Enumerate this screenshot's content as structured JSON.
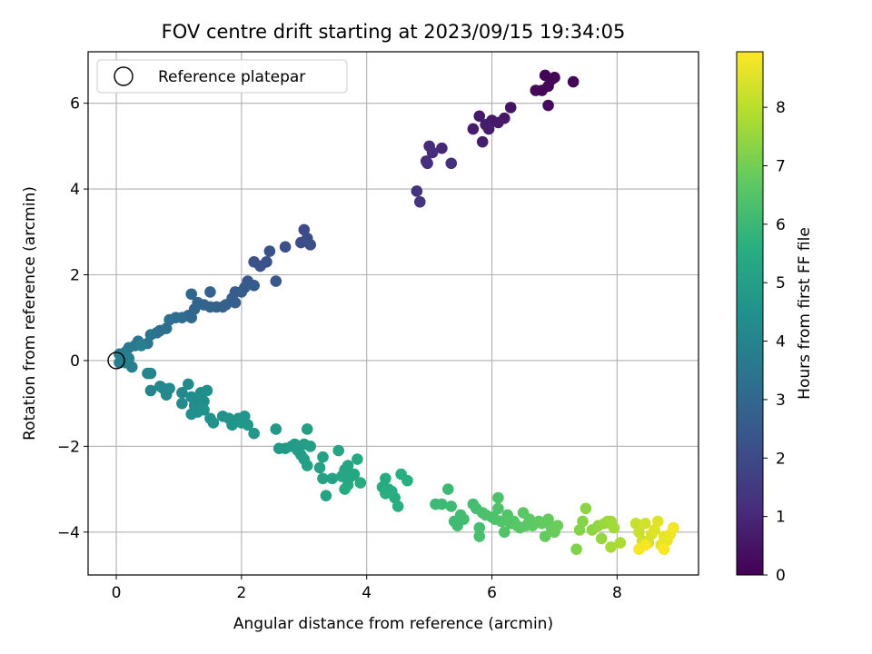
{
  "chart_data": {
    "type": "scatter",
    "title": "FOV centre drift starting at 2023/09/15 19:34:05",
    "xlabel": "Angular distance from reference (arcmin)",
    "ylabel": "Rotation from reference (arcmin)",
    "xlim": [
      -0.45,
      9.3
    ],
    "ylim": [
      -5.0,
      7.2
    ],
    "xticks": [
      0,
      2,
      4,
      6,
      8
    ],
    "yticks": [
      -4,
      -2,
      0,
      2,
      4,
      6
    ],
    "xtick_labels": [
      "0",
      "2",
      "4",
      "6",
      "8"
    ],
    "ytick_labels": [
      "−4",
      "−2",
      "0",
      "2",
      "4",
      "6"
    ],
    "grid": true,
    "legend": {
      "placement": "top-left",
      "entries": [
        {
          "label": "Reference platepar",
          "marker": "open-circle"
        }
      ]
    },
    "reference_point": {
      "x": 0,
      "y": 0
    },
    "colorbar": {
      "label": "Hours from first FF file",
      "range": [
        0,
        8.95
      ],
      "ticks": [
        0,
        1,
        2,
        3,
        4,
        5,
        6,
        7,
        8
      ],
      "tick_labels": [
        "0",
        "1",
        "2",
        "3",
        "4",
        "5",
        "6",
        "7",
        "8"
      ],
      "colormap": "viridis"
    },
    "points": [
      {
        "x": 6.85,
        "y": 6.65,
        "c": 0.05
      },
      {
        "x": 6.95,
        "y": 6.55,
        "c": 0.08
      },
      {
        "x": 7.0,
        "y": 6.6,
        "c": 0.1
      },
      {
        "x": 7.3,
        "y": 6.5,
        "c": 0.12
      },
      {
        "x": 6.8,
        "y": 6.3,
        "c": 0.15
      },
      {
        "x": 6.9,
        "y": 6.4,
        "c": 0.18
      },
      {
        "x": 6.7,
        "y": 6.3,
        "c": 0.2
      },
      {
        "x": 6.9,
        "y": 5.95,
        "c": 0.25
      },
      {
        "x": 6.3,
        "y": 5.9,
        "c": 0.5
      },
      {
        "x": 6.2,
        "y": 5.65,
        "c": 0.55
      },
      {
        "x": 6.0,
        "y": 5.6,
        "c": 0.6
      },
      {
        "x": 6.1,
        "y": 5.55,
        "c": 0.62
      },
      {
        "x": 5.8,
        "y": 5.7,
        "c": 0.65
      },
      {
        "x": 5.9,
        "y": 5.5,
        "c": 0.68
      },
      {
        "x": 5.7,
        "y": 5.4,
        "c": 0.7
      },
      {
        "x": 5.95,
        "y": 5.4,
        "c": 0.72
      },
      {
        "x": 5.85,
        "y": 5.1,
        "c": 0.75
      },
      {
        "x": 5.2,
        "y": 4.95,
        "c": 1.0
      },
      {
        "x": 5.0,
        "y": 5.0,
        "c": 1.05
      },
      {
        "x": 5.05,
        "y": 4.85,
        "c": 1.1
      },
      {
        "x": 4.95,
        "y": 4.65,
        "c": 1.15
      },
      {
        "x": 4.97,
        "y": 4.6,
        "c": 1.18
      },
      {
        "x": 5.35,
        "y": 4.6,
        "c": 1.2
      },
      {
        "x": 4.8,
        "y": 3.95,
        "c": 1.3
      },
      {
        "x": 4.85,
        "y": 3.7,
        "c": 1.35
      },
      {
        "x": 3.0,
        "y": 3.05,
        "c": 2.0
      },
      {
        "x": 3.05,
        "y": 2.85,
        "c": 2.05
      },
      {
        "x": 3.1,
        "y": 2.7,
        "c": 2.1
      },
      {
        "x": 2.95,
        "y": 2.75,
        "c": 2.12
      },
      {
        "x": 2.7,
        "y": 2.65,
        "c": 2.15
      },
      {
        "x": 2.45,
        "y": 2.55,
        "c": 2.2
      },
      {
        "x": 2.2,
        "y": 2.3,
        "c": 2.25
      },
      {
        "x": 2.3,
        "y": 2.2,
        "c": 2.28
      },
      {
        "x": 2.4,
        "y": 2.3,
        "c": 2.3
      },
      {
        "x": 2.55,
        "y": 1.85,
        "c": 2.4
      },
      {
        "x": 2.1,
        "y": 1.85,
        "c": 2.45
      },
      {
        "x": 2.05,
        "y": 1.7,
        "c": 2.5
      },
      {
        "x": 2.2,
        "y": 1.75,
        "c": 2.55
      },
      {
        "x": 1.9,
        "y": 1.6,
        "c": 2.6
      },
      {
        "x": 2.0,
        "y": 1.6,
        "c": 2.62
      },
      {
        "x": 1.85,
        "y": 1.45,
        "c": 2.65
      },
      {
        "x": 1.9,
        "y": 1.35,
        "c": 2.7
      },
      {
        "x": 1.75,
        "y": 1.3,
        "c": 2.75
      },
      {
        "x": 1.7,
        "y": 1.25,
        "c": 2.78
      },
      {
        "x": 1.6,
        "y": 1.25,
        "c": 2.8
      },
      {
        "x": 1.5,
        "y": 1.6,
        "c": 2.82
      },
      {
        "x": 1.5,
        "y": 1.25,
        "c": 2.85
      },
      {
        "x": 1.4,
        "y": 1.3,
        "c": 2.88
      },
      {
        "x": 1.3,
        "y": 1.35,
        "c": 2.9
      },
      {
        "x": 1.2,
        "y": 1.55,
        "c": 2.92
      },
      {
        "x": 1.25,
        "y": 1.2,
        "c": 2.95
      },
      {
        "x": 1.15,
        "y": 1.05,
        "c": 3.0
      },
      {
        "x": 1.2,
        "y": 1.0,
        "c": 3.05
      },
      {
        "x": 1.05,
        "y": 1.0,
        "c": 3.1
      },
      {
        "x": 0.95,
        "y": 1.0,
        "c": 3.15
      },
      {
        "x": 0.85,
        "y": 0.95,
        "c": 3.2
      },
      {
        "x": 0.8,
        "y": 0.75,
        "c": 3.25
      },
      {
        "x": 0.7,
        "y": 0.7,
        "c": 3.3
      },
      {
        "x": 0.65,
        "y": 0.65,
        "c": 3.35
      },
      {
        "x": 0.55,
        "y": 0.6,
        "c": 3.4
      },
      {
        "x": 0.5,
        "y": 0.4,
        "c": 3.45
      },
      {
        "x": 0.35,
        "y": 0.45,
        "c": 3.5
      },
      {
        "x": 0.3,
        "y": 0.35,
        "c": 3.55
      },
      {
        "x": 0.2,
        "y": 0.3,
        "c": 3.6
      },
      {
        "x": 0.15,
        "y": 0.2,
        "c": 3.65
      },
      {
        "x": 0.1,
        "y": 0.1,
        "c": 3.7
      },
      {
        "x": 0.05,
        "y": 0.15,
        "c": 3.72
      },
      {
        "x": 0.05,
        "y": -0.05,
        "c": 3.75
      },
      {
        "x": 0.15,
        "y": -0.05,
        "c": 3.8
      },
      {
        "x": 0.25,
        "y": -0.15,
        "c": 3.82
      },
      {
        "x": 0.2,
        "y": 0.05,
        "c": 3.85
      },
      {
        "x": 0.4,
        "y": 0.35,
        "c": 3.9
      },
      {
        "x": 0.5,
        "y": -0.3,
        "c": 4.0
      },
      {
        "x": 0.55,
        "y": -0.3,
        "c": 4.02
      },
      {
        "x": 0.55,
        "y": -0.7,
        "c": 4.05
      },
      {
        "x": 0.7,
        "y": -0.6,
        "c": 4.1
      },
      {
        "x": 0.75,
        "y": -0.65,
        "c": 4.12
      },
      {
        "x": 0.8,
        "y": -0.8,
        "c": 4.15
      },
      {
        "x": 0.85,
        "y": -0.65,
        "c": 4.18
      },
      {
        "x": 1.05,
        "y": -0.75,
        "c": 4.2
      },
      {
        "x": 1.15,
        "y": -0.55,
        "c": 4.22
      },
      {
        "x": 1.05,
        "y": -1.0,
        "c": 4.25
      },
      {
        "x": 1.2,
        "y": -0.85,
        "c": 4.28
      },
      {
        "x": 1.3,
        "y": -0.9,
        "c": 4.3
      },
      {
        "x": 1.25,
        "y": -1.05,
        "c": 4.32
      },
      {
        "x": 1.35,
        "y": -0.75,
        "c": 4.35
      },
      {
        "x": 1.4,
        "y": -0.95,
        "c": 4.38
      },
      {
        "x": 1.45,
        "y": -0.7,
        "c": 4.4
      },
      {
        "x": 1.3,
        "y": -1.2,
        "c": 4.42
      },
      {
        "x": 1.2,
        "y": -1.25,
        "c": 4.45
      },
      {
        "x": 1.4,
        "y": -1.15,
        "c": 4.48
      },
      {
        "x": 1.5,
        "y": -1.35,
        "c": 4.5
      },
      {
        "x": 1.55,
        "y": -1.45,
        "c": 4.52
      },
      {
        "x": 1.7,
        "y": -1.3,
        "c": 4.55
      },
      {
        "x": 1.8,
        "y": -1.35,
        "c": 4.58
      },
      {
        "x": 1.85,
        "y": -1.5,
        "c": 4.6
      },
      {
        "x": 1.95,
        "y": -1.35,
        "c": 4.62
      },
      {
        "x": 2.0,
        "y": -1.45,
        "c": 4.65
      },
      {
        "x": 2.05,
        "y": -1.3,
        "c": 4.68
      },
      {
        "x": 2.1,
        "y": -1.5,
        "c": 4.7
      },
      {
        "x": 2.2,
        "y": -1.7,
        "c": 4.72
      },
      {
        "x": 2.55,
        "y": -1.6,
        "c": 4.75
      },
      {
        "x": 2.6,
        "y": -2.05,
        "c": 4.8
      },
      {
        "x": 2.7,
        "y": -2.05,
        "c": 4.82
      },
      {
        "x": 2.8,
        "y": -2.0,
        "c": 4.85
      },
      {
        "x": 2.85,
        "y": -1.95,
        "c": 4.88
      },
      {
        "x": 2.9,
        "y": -2.1,
        "c": 4.9
      },
      {
        "x": 2.95,
        "y": -2.2,
        "c": 4.92
      },
      {
        "x": 3.0,
        "y": -1.95,
        "c": 4.95
      },
      {
        "x": 3.0,
        "y": -2.3,
        "c": 4.98
      },
      {
        "x": 3.05,
        "y": -1.6,
        "c": 5.0
      },
      {
        "x": 3.1,
        "y": -2.0,
        "c": 5.02
      },
      {
        "x": 3.05,
        "y": -2.45,
        "c": 5.05
      },
      {
        "x": 3.3,
        "y": -2.25,
        "c": 5.08
      },
      {
        "x": 3.25,
        "y": -2.5,
        "c": 5.1
      },
      {
        "x": 3.3,
        "y": -2.75,
        "c": 5.12
      },
      {
        "x": 3.45,
        "y": -2.75,
        "c": 5.15
      },
      {
        "x": 3.35,
        "y": -3.15,
        "c": 5.18
      },
      {
        "x": 3.55,
        "y": -2.1,
        "c": 5.2
      },
      {
        "x": 3.65,
        "y": -2.55,
        "c": 5.22
      },
      {
        "x": 3.7,
        "y": -2.45,
        "c": 5.25
      },
      {
        "x": 3.6,
        "y": -2.7,
        "c": 5.28
      },
      {
        "x": 3.75,
        "y": -2.7,
        "c": 5.3
      },
      {
        "x": 3.8,
        "y": -2.65,
        "c": 5.32
      },
      {
        "x": 3.85,
        "y": -2.3,
        "c": 5.35
      },
      {
        "x": 3.7,
        "y": -2.9,
        "c": 5.38
      },
      {
        "x": 3.65,
        "y": -3.0,
        "c": 5.4
      },
      {
        "x": 3.9,
        "y": -2.85,
        "c": 5.42
      },
      {
        "x": 4.25,
        "y": -2.95,
        "c": 5.45
      },
      {
        "x": 4.3,
        "y": -2.75,
        "c": 5.48
      },
      {
        "x": 4.35,
        "y": -3.0,
        "c": 5.5
      },
      {
        "x": 4.4,
        "y": -3.05,
        "c": 5.52
      },
      {
        "x": 4.45,
        "y": -3.2,
        "c": 5.55
      },
      {
        "x": 4.5,
        "y": -3.4,
        "c": 5.58
      },
      {
        "x": 4.55,
        "y": -2.65,
        "c": 5.6
      },
      {
        "x": 4.65,
        "y": -2.8,
        "c": 5.62
      },
      {
        "x": 4.3,
        "y": -3.1,
        "c": 5.65
      },
      {
        "x": 5.1,
        "y": -3.35,
        "c": 6.0
      },
      {
        "x": 5.2,
        "y": -3.35,
        "c": 6.02
      },
      {
        "x": 5.3,
        "y": -3.0,
        "c": 6.05
      },
      {
        "x": 5.35,
        "y": -3.4,
        "c": 6.08
      },
      {
        "x": 5.4,
        "y": -3.75,
        "c": 6.1
      },
      {
        "x": 5.45,
        "y": -3.85,
        "c": 6.12
      },
      {
        "x": 5.5,
        "y": -3.6,
        "c": 6.15
      },
      {
        "x": 5.55,
        "y": -3.7,
        "c": 6.18
      },
      {
        "x": 5.7,
        "y": -3.35,
        "c": 6.2
      },
      {
        "x": 5.75,
        "y": -3.45,
        "c": 6.22
      },
      {
        "x": 5.8,
        "y": -3.9,
        "c": 6.25
      },
      {
        "x": 5.8,
        "y": -4.1,
        "c": 6.28
      },
      {
        "x": 5.85,
        "y": -3.55,
        "c": 6.3
      },
      {
        "x": 5.9,
        "y": -3.6,
        "c": 6.32
      },
      {
        "x": 6.0,
        "y": -3.65,
        "c": 6.35
      },
      {
        "x": 6.05,
        "y": -3.7,
        "c": 6.38
      },
      {
        "x": 6.1,
        "y": -3.2,
        "c": 6.4
      },
      {
        "x": 6.1,
        "y": -3.45,
        "c": 6.42
      },
      {
        "x": 6.15,
        "y": -3.75,
        "c": 6.45
      },
      {
        "x": 6.2,
        "y": -4.0,
        "c": 6.48
      },
      {
        "x": 6.25,
        "y": -3.6,
        "c": 6.5
      },
      {
        "x": 6.3,
        "y": -3.8,
        "c": 6.52
      },
      {
        "x": 6.35,
        "y": -3.75,
        "c": 6.55
      },
      {
        "x": 6.4,
        "y": -3.85,
        "c": 6.58
      },
      {
        "x": 6.45,
        "y": -3.9,
        "c": 6.6
      },
      {
        "x": 6.5,
        "y": -3.55,
        "c": 6.62
      },
      {
        "x": 6.55,
        "y": -3.85,
        "c": 6.65
      },
      {
        "x": 6.6,
        "y": -3.7,
        "c": 6.68
      },
      {
        "x": 6.65,
        "y": -3.85,
        "c": 6.7
      },
      {
        "x": 6.75,
        "y": -3.75,
        "c": 6.72
      },
      {
        "x": 6.8,
        "y": -3.8,
        "c": 6.75
      },
      {
        "x": 6.85,
        "y": -4.1,
        "c": 6.78
      },
      {
        "x": 6.9,
        "y": -3.7,
        "c": 6.8
      },
      {
        "x": 6.95,
        "y": -3.9,
        "c": 6.82
      },
      {
        "x": 7.0,
        "y": -4.0,
        "c": 6.85
      },
      {
        "x": 7.05,
        "y": -3.85,
        "c": 6.88
      },
      {
        "x": 7.35,
        "y": -4.4,
        "c": 7.2
      },
      {
        "x": 7.4,
        "y": -3.95,
        "c": 7.25
      },
      {
        "x": 7.45,
        "y": -3.75,
        "c": 7.3
      },
      {
        "x": 7.5,
        "y": -3.45,
        "c": 7.35
      },
      {
        "x": 7.6,
        "y": -3.95,
        "c": 7.4
      },
      {
        "x": 7.7,
        "y": -3.85,
        "c": 7.45
      },
      {
        "x": 7.75,
        "y": -4.15,
        "c": 7.5
      },
      {
        "x": 7.8,
        "y": -3.8,
        "c": 7.55
      },
      {
        "x": 7.85,
        "y": -3.75,
        "c": 7.6
      },
      {
        "x": 7.9,
        "y": -3.75,
        "c": 7.65
      },
      {
        "x": 7.95,
        "y": -3.9,
        "c": 7.7
      },
      {
        "x": 7.9,
        "y": -4.35,
        "c": 7.75
      },
      {
        "x": 8.05,
        "y": -4.25,
        "c": 7.8
      },
      {
        "x": 8.3,
        "y": -3.8,
        "c": 8.2
      },
      {
        "x": 8.35,
        "y": -4.0,
        "c": 8.25
      },
      {
        "x": 8.4,
        "y": -4.2,
        "c": 8.3
      },
      {
        "x": 8.45,
        "y": -3.8,
        "c": 8.35
      },
      {
        "x": 8.5,
        "y": -4.25,
        "c": 8.4
      },
      {
        "x": 8.55,
        "y": -4.05,
        "c": 8.45
      },
      {
        "x": 8.6,
        "y": -3.95,
        "c": 8.5
      },
      {
        "x": 8.65,
        "y": -3.75,
        "c": 8.55
      },
      {
        "x": 8.7,
        "y": -4.3,
        "c": 8.6
      },
      {
        "x": 8.75,
        "y": -4.1,
        "c": 8.65
      },
      {
        "x": 8.8,
        "y": -4.2,
        "c": 8.7
      },
      {
        "x": 8.85,
        "y": -4.05,
        "c": 8.75
      },
      {
        "x": 8.9,
        "y": -3.9,
        "c": 8.8
      },
      {
        "x": 8.35,
        "y": -4.4,
        "c": 8.85
      },
      {
        "x": 8.45,
        "y": -4.3,
        "c": 8.88
      },
      {
        "x": 8.75,
        "y": -4.4,
        "c": 8.9
      }
    ]
  }
}
